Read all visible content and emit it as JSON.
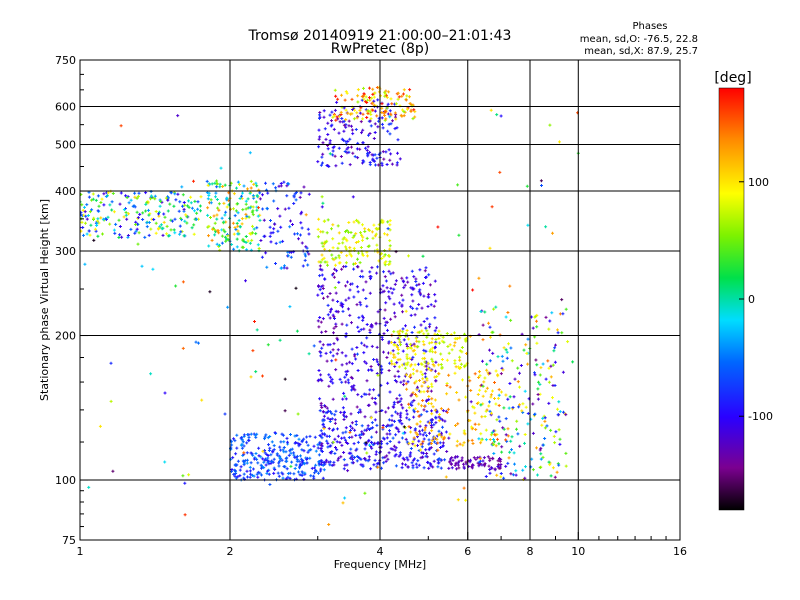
{
  "chart_data": {
    "type": "scatter",
    "title": "Tromsø 20140919 21:00:00–21:01:43",
    "subtitle": "RwPretec (8p)",
    "xlabel": "Frequency [MHz]",
    "ylabel": "Stationary phase Virtual Height [km]",
    "x_scale": "log",
    "y_scale": "log",
    "xlim": [
      1,
      16
    ],
    "ylim": [
      75,
      750
    ],
    "x_ticks": [
      1,
      2,
      4,
      6,
      8,
      10,
      16
    ],
    "x_tick_labels": [
      "1",
      "2",
      "4",
      "6",
      "8",
      "10",
      "16"
    ],
    "y_ticks": [
      75,
      100,
      200,
      300,
      400,
      500,
      600,
      750
    ],
    "y_tick_labels": [
      "75",
      "100",
      "200",
      "300",
      "400",
      "500",
      "600",
      "750"
    ],
    "grid": true,
    "stats": {
      "title": "Phases",
      "line_o": "mean, sd,O: -76.5, 22.8",
      "line_x": "mean, sd,X:  87.9, 25.7"
    },
    "colorbar": {
      "label": "[deg]",
      "range": [
        -180,
        180
      ],
      "ticks": [
        100,
        0,
        -100
      ],
      "tick_labels": [
        "100",
        "0",
        "-100"
      ]
    },
    "clusters": [
      {
        "x": [
          1.0,
          1.75
        ],
        "y": [
          320,
          400
        ],
        "phase": [
          -120,
          110
        ],
        "n": 230
      },
      {
        "x": [
          1.8,
          2.3
        ],
        "y": [
          300,
          420
        ],
        "phase": [
          -60,
          140
        ],
        "n": 180
      },
      {
        "x": [
          2.3,
          2.9
        ],
        "y": [
          270,
          420
        ],
        "phase": [
          -130,
          -40
        ],
        "n": 90
      },
      {
        "x": [
          3.0,
          4.4
        ],
        "y": [
          450,
          620
        ],
        "phase": [
          -140,
          -70
        ],
        "n": 170
      },
      {
        "x": [
          3.2,
          4.7
        ],
        "y": [
          560,
          660
        ],
        "phase": [
          60,
          180
        ],
        "n": 130
      },
      {
        "x": [
          3.0,
          4.2
        ],
        "y": [
          280,
          350
        ],
        "phase": [
          50,
          110
        ],
        "n": 140
      },
      {
        "x": [
          3.0,
          5.2
        ],
        "y": [
          140,
          280
        ],
        "phase": [
          -140,
          -80
        ],
        "n": 420
      },
      {
        "x": [
          3.0,
          5.5
        ],
        "y": [
          105,
          140
        ],
        "phase": [
          -130,
          -60
        ],
        "n": 380
      },
      {
        "x": [
          2.0,
          3.1
        ],
        "y": [
          100,
          125
        ],
        "phase": [
          -100,
          -40
        ],
        "n": 280
      },
      {
        "x": [
          4.2,
          6.0
        ],
        "y": [
          170,
          205
        ],
        "phase": [
          60,
          120
        ],
        "n": 140
      },
      {
        "x": [
          4.5,
          7.0
        ],
        "y": [
          115,
          170
        ],
        "phase": [
          80,
          150
        ],
        "n": 170
      },
      {
        "x": [
          5.5,
          7.0
        ],
        "y": [
          105,
          112
        ],
        "phase": [
          -150,
          -110
        ],
        "n": 70
      },
      {
        "x": [
          6.3,
          9.5
        ],
        "y": [
          100,
          230
        ],
        "phase": [
          -150,
          150
        ],
        "n": 240
      },
      {
        "x": [
          1.0,
          10.0
        ],
        "y": [
          80,
          600
        ],
        "phase": [
          -180,
          180
        ],
        "n": 140
      }
    ]
  }
}
